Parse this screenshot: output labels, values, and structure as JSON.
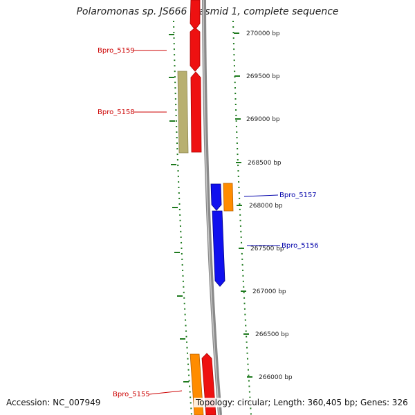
{
  "title": "Polaromonas sp. JS666 plasmid 1, complete sequence",
  "accession": "Accession: NC_007949",
  "summary": "Topology: circular; Length: 360,405 bp; Genes: 326",
  "colors": {
    "backbone": "#8a8a8a",
    "tick": "#1e7a1e",
    "label_forward": "#cc0000",
    "label_reverse": "#0000aa",
    "red_gene": "#ee1111",
    "olive_gene": "#b8b070",
    "blue_gene": "#1010ee",
    "orange_gene": "#ff8c00"
  },
  "scale_ticks": [
    {
      "label": "270000 bp"
    },
    {
      "label": "269500 bp"
    },
    {
      "label": "269000 bp"
    },
    {
      "label": "268500 bp"
    },
    {
      "label": "268000 bp"
    },
    {
      "label": "267500 bp"
    },
    {
      "label": "267000 bp"
    },
    {
      "label": "266500 bp"
    },
    {
      "label": "266000 bp"
    }
  ],
  "gene_labels": [
    {
      "name": "Bpro_5159",
      "strand": "forward"
    },
    {
      "name": "Bpro_5158",
      "strand": "forward"
    },
    {
      "name": "Bpro_5157",
      "strand": "reverse"
    },
    {
      "name": "Bpro_5156",
      "strand": "reverse"
    },
    {
      "name": "Bpro_5155",
      "strand": "forward"
    }
  ]
}
